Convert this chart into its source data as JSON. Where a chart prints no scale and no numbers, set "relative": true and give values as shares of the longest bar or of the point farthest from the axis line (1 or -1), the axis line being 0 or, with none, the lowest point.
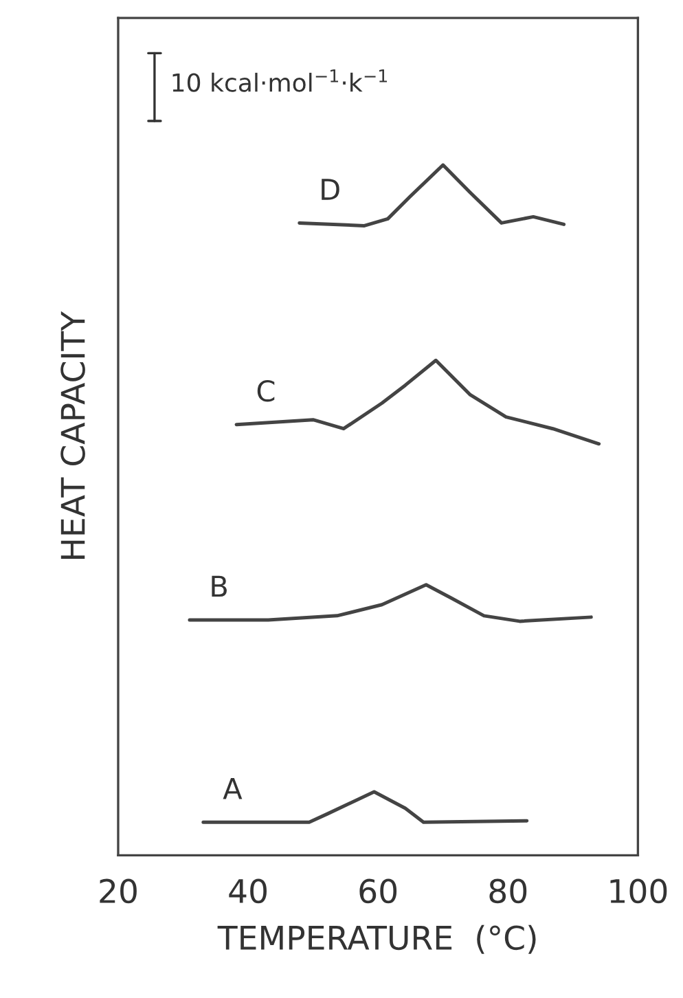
{
  "chart_data": {
    "type": "line",
    "relative": true,
    "xlabel": "TEMPERATURE  (°C)",
    "ylabel": "HEAT CAPACITY",
    "xlim": [
      20,
      100
    ],
    "xticks": [
      20,
      40,
      60,
      80,
      100
    ],
    "tick_labels": "x",
    "grid": false,
    "marker": "none",
    "line_style": "solid",
    "annotations": [
      "10 kcal·mol$^{−1}$·k$^{−1}$"
    ],
    "series": [
      {
        "name": "D",
        "color": "#444444",
        "x": [
          47.9,
          57.9,
          61.5,
          64.9,
          70.0,
          74.2,
          79.0,
          83.9,
          88.6
        ],
        "values": [
          0.916,
          0.912,
          0.922,
          0.954,
          1.0,
          0.96,
          0.916,
          0.925,
          0.914
        ]
      },
      {
        "name": "C",
        "color": "#444444",
        "x": [
          38.2,
          50.0,
          54.7,
          60.6,
          64.2,
          68.9,
          74.2,
          79.7,
          86.9,
          94.0
        ],
        "values": [
          0.624,
          0.631,
          0.618,
          0.655,
          0.681,
          0.717,
          0.667,
          0.635,
          0.618,
          0.596
        ]
      },
      {
        "name": "B",
        "color": "#444444",
        "x": [
          31.0,
          43.1,
          53.7,
          60.6,
          67.4,
          71.2,
          76.3,
          81.8,
          92.8
        ],
        "values": [
          0.341,
          0.341,
          0.347,
          0.363,
          0.392,
          0.373,
          0.347,
          0.339,
          0.345
        ]
      },
      {
        "name": "A",
        "color": "#444444",
        "x": [
          33.1,
          49.4,
          52.2,
          59.4,
          64.2,
          67.0,
          82.9
        ],
        "values": [
          0.048,
          0.048,
          0.06,
          0.092,
          0.068,
          0.048,
          0.05
        ]
      }
    ]
  }
}
